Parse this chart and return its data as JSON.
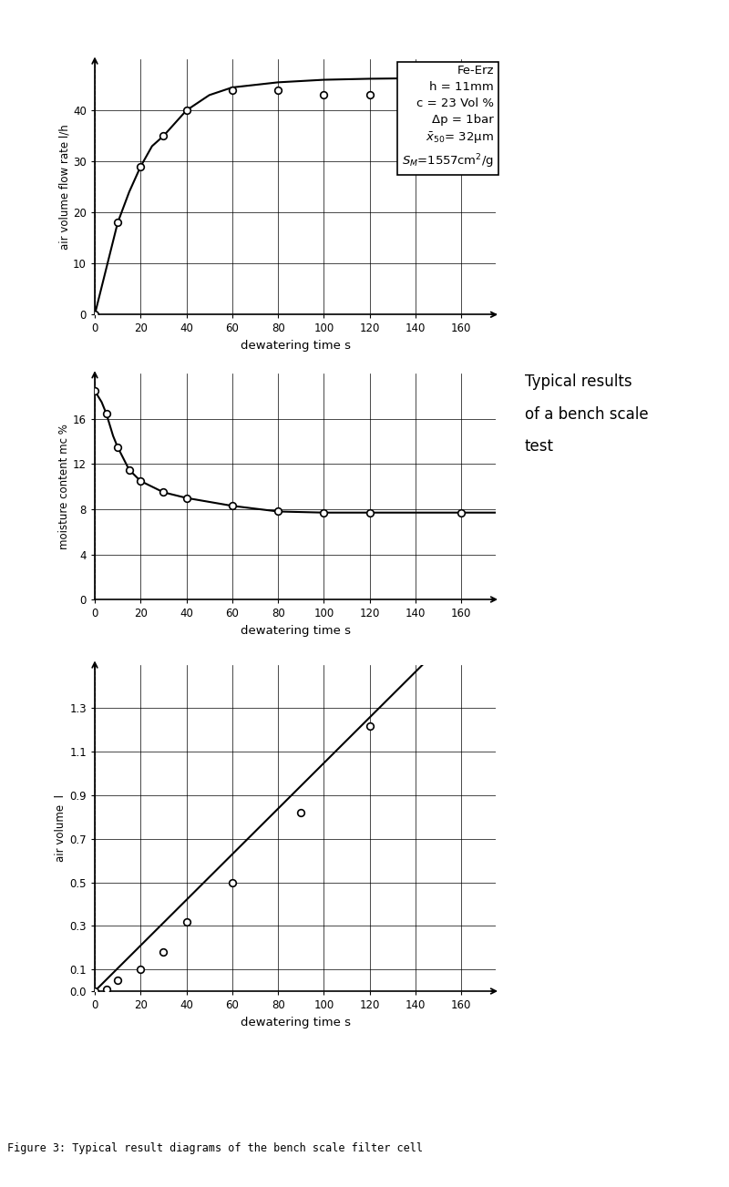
{
  "chart1": {
    "ylabel": "air volume flow rate l/h",
    "xlabel": "dewatering time s",
    "xticks": [
      0,
      20,
      40,
      60,
      80,
      100,
      120,
      140,
      160
    ],
    "yticks": [
      0,
      10,
      20,
      30,
      40
    ],
    "ylim": [
      0,
      50
    ],
    "xlim": [
      0,
      175
    ],
    "data_x": [
      0,
      10,
      20,
      30,
      40,
      60,
      80,
      100,
      120
    ],
    "data_y": [
      0,
      18,
      29,
      35,
      40,
      44,
      44,
      43,
      43
    ],
    "curve_x": [
      0,
      5,
      10,
      15,
      20,
      25,
      30,
      35,
      40,
      50,
      60,
      80,
      100,
      120,
      140,
      160,
      175
    ],
    "curve_y": [
      0,
      9,
      18,
      24,
      29,
      33,
      35,
      37.5,
      40,
      43,
      44.5,
      45.5,
      46,
      46.2,
      46.3,
      46.4,
      46.4
    ]
  },
  "chart2": {
    "ylabel": "moisture content mc %",
    "xlabel": "dewatering time s",
    "xticks": [
      0,
      20,
      40,
      60,
      80,
      100,
      120,
      140,
      160
    ],
    "yticks": [
      0,
      4,
      8,
      12,
      16
    ],
    "ylim": [
      0,
      20
    ],
    "xlim": [
      0,
      175
    ],
    "data_x": [
      0,
      5,
      10,
      15,
      20,
      30,
      40,
      60,
      80,
      100,
      120,
      160
    ],
    "data_y": [
      18.5,
      16.5,
      13.5,
      11.5,
      10.5,
      9.5,
      9.0,
      8.3,
      7.8,
      7.7,
      7.7,
      7.7
    ],
    "curve_x": [
      0,
      3,
      5,
      8,
      10,
      15,
      20,
      30,
      40,
      60,
      80,
      100,
      120,
      140,
      160,
      175
    ],
    "curve_y": [
      18.5,
      17.5,
      16.5,
      14.5,
      13.5,
      11.5,
      10.5,
      9.5,
      9.0,
      8.3,
      7.8,
      7.7,
      7.7,
      7.7,
      7.7,
      7.7
    ]
  },
  "chart3": {
    "ylabel": "air volume  l",
    "xlabel": "dewatering time s",
    "xticks": [
      0,
      20,
      40,
      60,
      80,
      100,
      120,
      140,
      160
    ],
    "yticks": [
      0,
      0.1,
      0.3,
      0.5,
      0.7,
      0.9,
      1.1,
      1.3
    ],
    "ylim": [
      0,
      1.5
    ],
    "xlim": [
      0,
      175
    ],
    "data_x": [
      0,
      5,
      10,
      20,
      30,
      40,
      60,
      90,
      120
    ],
    "data_y": [
      0.0,
      0.01,
      0.05,
      0.1,
      0.18,
      0.32,
      0.5,
      0.82,
      1.22
    ],
    "line_x": [
      0,
      145
    ],
    "line_y": [
      0.0,
      1.52
    ]
  },
  "ann_text_lines": [
    "Fe-Erz",
    "h = 11mm",
    "c = 23 Vol %",
    "Δp = 1bar",
    "x̅₅₀ = 32μm",
    "Sₘ = 1557cm²/g"
  ],
  "side_text": [
    "Typical results",
    "of a bench scale",
    "test"
  ],
  "figure_caption": "Figure 3: Typical result diagrams of the bench scale filter cell",
  "bg_color": "#ffffff"
}
